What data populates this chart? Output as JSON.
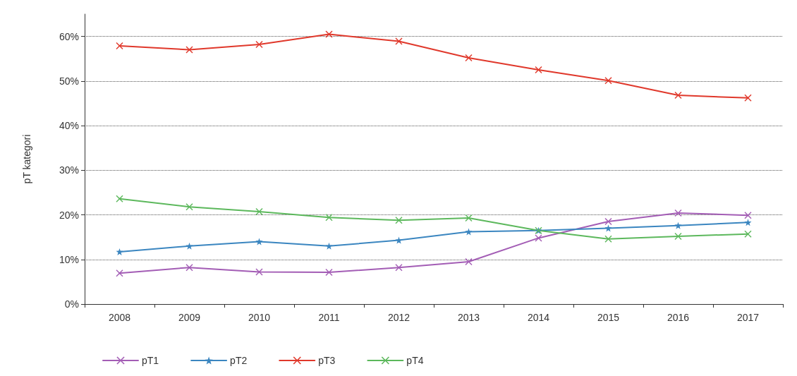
{
  "chart_data": {
    "type": "line",
    "ylabel": "pT kategori",
    "categories": [
      "2008",
      "2009",
      "2010",
      "2011",
      "2012",
      "2013",
      "2014",
      "2015",
      "2016",
      "2017"
    ],
    "series": [
      {
        "name": "pT1",
        "color": "#a35db5",
        "marker": "cross",
        "values": [
          6.9,
          8.2,
          7.2,
          7.1,
          8.2,
          9.5,
          14.8,
          18.5,
          20.4,
          19.9
        ]
      },
      {
        "name": "pT2",
        "color": "#3b86c0",
        "marker": "star",
        "values": [
          11.7,
          13.0,
          14.0,
          13.0,
          14.3,
          16.2,
          16.5,
          17.0,
          17.6,
          18.3
        ]
      },
      {
        "name": "pT3",
        "color": "#e0382b",
        "marker": "cross",
        "values": [
          57.9,
          57.0,
          58.2,
          60.5,
          58.9,
          55.2,
          52.5,
          50.1,
          46.8,
          46.2
        ]
      },
      {
        "name": "pT4",
        "color": "#5cb85c",
        "marker": "cross",
        "values": [
          23.6,
          21.8,
          20.7,
          19.4,
          18.8,
          19.3,
          16.5,
          14.6,
          15.2,
          15.7
        ]
      }
    ],
    "ylim": [
      0,
      65
    ],
    "yticks": [
      {
        "value": 0,
        "label": "0%"
      },
      {
        "value": 10,
        "label": "10%"
      },
      {
        "value": 20,
        "label": "20%"
      },
      {
        "value": 30,
        "label": "30%"
      },
      {
        "value": 40,
        "label": "40%"
      },
      {
        "value": 50,
        "label": "50%"
      },
      {
        "value": 60,
        "label": "60%"
      }
    ],
    "grid": "y",
    "legend": "bottom left",
    "line_style": "solid"
  }
}
